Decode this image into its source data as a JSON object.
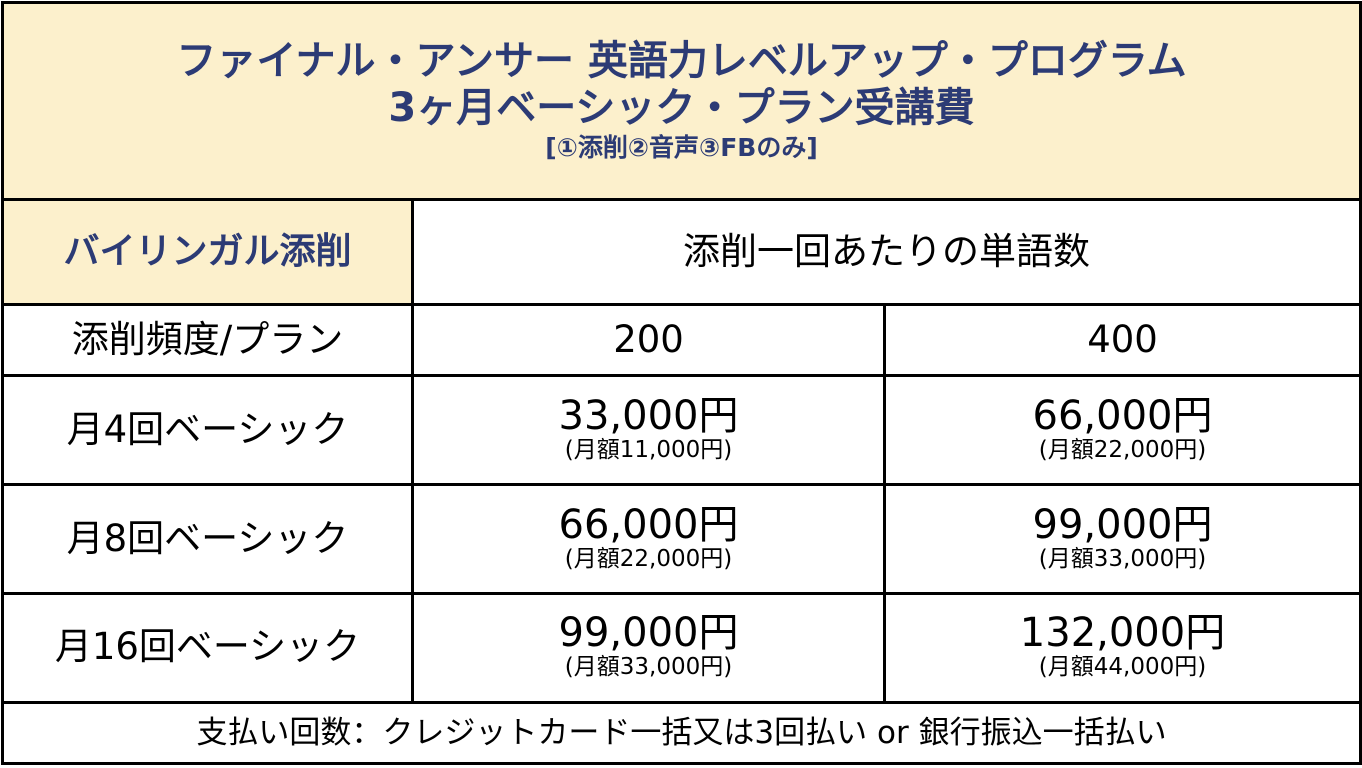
{
  "title": {
    "line1": "ファイナル・アンサー 英語力レベルアップ・プログラム",
    "line2": "3ヶ月ベーシック・プラン受講費",
    "line3": "[①添削②音声③FBのみ]"
  },
  "header": {
    "corner": "バイリンガル添削",
    "words_per_correction": "添削一回あたりの単語数"
  },
  "frequency_row": {
    "label": "添削頻度/プラン",
    "col1": "200",
    "col2": "400"
  },
  "plans": [
    {
      "name": "月4回ベーシック",
      "col1": {
        "price": "33,000円",
        "monthly": "(月額11,000円)"
      },
      "col2": {
        "price": "66,000円",
        "monthly": "(月額22,000円)"
      }
    },
    {
      "name": "月8回ベーシック",
      "col1": {
        "price": "66,000円",
        "monthly": "(月額22,000円)"
      },
      "col2": {
        "price": "99,000円",
        "monthly": "(月額33,000円)"
      }
    },
    {
      "name": "月16回ベーシック",
      "col1": {
        "price": "99,000円",
        "monthly": "(月額33,000円)"
      },
      "col2": {
        "price": "132,000円",
        "monthly": "(月額44,000円)"
      }
    }
  ],
  "footer": "支払い回数：クレジットカード一括又は3回払い or 銀行振込一括払い",
  "colors": {
    "header_background": "#fcf0cc",
    "header_text": "#2c3b75",
    "border": "#000000"
  }
}
